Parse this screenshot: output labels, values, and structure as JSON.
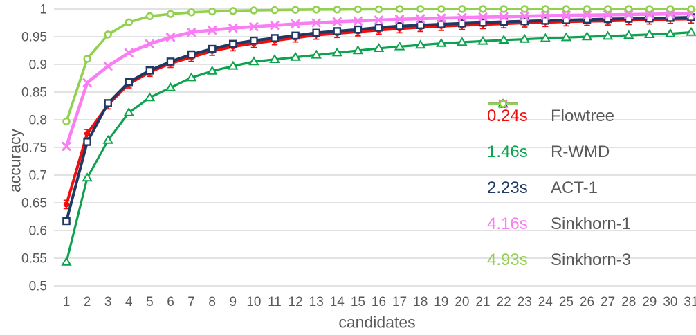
{
  "chart_data": {
    "type": "line",
    "title": "",
    "xlabel": "candidates",
    "ylabel": "accuracy",
    "x": [
      1,
      2,
      3,
      4,
      5,
      6,
      7,
      8,
      9,
      10,
      11,
      12,
      13,
      14,
      15,
      16,
      17,
      18,
      19,
      20,
      21,
      22,
      23,
      24,
      25,
      26,
      27,
      28,
      29,
      30,
      31
    ],
    "xlim": [
      1,
      31
    ],
    "ylim": [
      0.5,
      1.0
    ],
    "yticks": [
      "1",
      "0.95",
      "0.9",
      "0.85",
      "0.8",
      "0.75",
      "0.7",
      "0.65",
      "0.6",
      "0.55",
      "0.5"
    ],
    "grid": "horizontal",
    "grid_color": "#d9d9d9",
    "text_color": "#595959",
    "legend_position": "right-middle",
    "series": [
      {
        "name": "Flowtree",
        "time": "0.24s",
        "color": "#f20d0d",
        "marker": "filled-circle",
        "error_bar": 0.0075,
        "values": [
          0.647,
          0.775,
          0.827,
          0.865,
          0.886,
          0.902,
          0.913,
          0.924,
          0.932,
          0.938,
          0.943,
          0.948,
          0.953,
          0.956,
          0.959,
          0.962,
          0.9645,
          0.967,
          0.969,
          0.9705,
          0.972,
          0.9735,
          0.975,
          0.976,
          0.977,
          0.978,
          0.9785,
          0.9795,
          0.9805,
          0.9815,
          0.982
        ]
      },
      {
        "name": "R-WMD",
        "time": "1.46s",
        "color": "#0ca24e",
        "marker": "open-triangle",
        "error_bar": null,
        "values": [
          0.543,
          0.695,
          0.763,
          0.813,
          0.84,
          0.858,
          0.876,
          0.888,
          0.897,
          0.905,
          0.909,
          0.913,
          0.917,
          0.921,
          0.925,
          0.929,
          0.932,
          0.935,
          0.938,
          0.94,
          0.942,
          0.944,
          0.9455,
          0.947,
          0.9485,
          0.95,
          0.951,
          0.9525,
          0.954,
          0.9555,
          0.958
        ]
      },
      {
        "name": "ACT-1",
        "time": "2.23s",
        "color": "#1f3864",
        "marker": "open-square",
        "error_bar": null,
        "values": [
          0.617,
          0.76,
          0.83,
          0.868,
          0.889,
          0.905,
          0.918,
          0.928,
          0.937,
          0.943,
          0.9475,
          0.952,
          0.957,
          0.96,
          0.963,
          0.9665,
          0.969,
          0.971,
          0.9725,
          0.974,
          0.9755,
          0.977,
          0.978,
          0.979,
          0.98,
          0.981,
          0.982,
          0.9825,
          0.983,
          0.984,
          0.985
        ]
      },
      {
        "name": "Sinkhorn-1",
        "time": "4.16s",
        "color": "#f97ef3",
        "marker": "x-cross",
        "error_bar": null,
        "values": [
          0.752,
          0.867,
          0.897,
          0.921,
          0.937,
          0.949,
          0.958,
          0.962,
          0.9655,
          0.968,
          0.9705,
          0.973,
          0.975,
          0.977,
          0.9785,
          0.98,
          0.9815,
          0.9825,
          0.9835,
          0.9845,
          0.9855,
          0.986,
          0.987,
          0.988,
          0.9885,
          0.989,
          0.9895,
          0.99,
          0.9905,
          0.991,
          0.9915
        ]
      },
      {
        "name": "Sinkhorn-3",
        "time": "4.93s",
        "color": "#92d050",
        "marker": "open-circle",
        "error_bar": null,
        "values": [
          0.797,
          0.91,
          0.954,
          0.976,
          0.987,
          0.991,
          0.994,
          0.9955,
          0.9965,
          0.9975,
          0.998,
          0.9985,
          0.999,
          0.999,
          0.9995,
          0.9995,
          1.0,
          1.0,
          1.0,
          1.0,
          1.0,
          1.0,
          1.0,
          1.0,
          1.0,
          1.0,
          1.0,
          1.0,
          1.0,
          1.0,
          1.0
        ]
      }
    ]
  }
}
